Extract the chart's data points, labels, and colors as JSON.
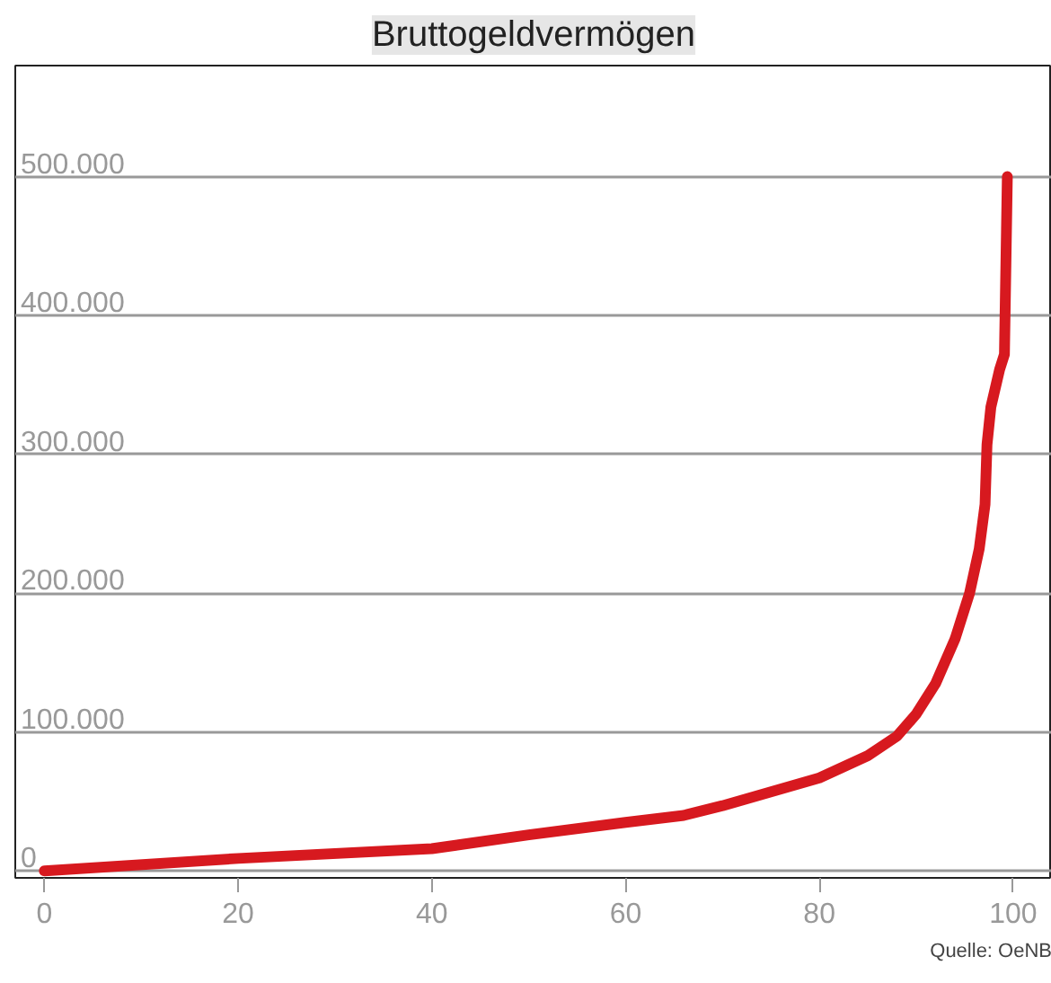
{
  "chart_data": {
    "type": "line",
    "title": "Bruttogeldvermögen",
    "annotations": [
      "Quelle: OeNB"
    ],
    "x": [
      0,
      20,
      40,
      50,
      60,
      66,
      70,
      75,
      80,
      85,
      88,
      90,
      92,
      94,
      95.5,
      96.5,
      97.1,
      97.3,
      97.7,
      98.6,
      99.1,
      99.4
    ],
    "series": [
      {
        "color": "#d7191f",
        "values": [
          0,
          9000,
          16000,
          26000,
          35000,
          40000,
          47000,
          57000,
          67000,
          83000,
          97000,
          113000,
          135000,
          167000,
          200000,
          232000,
          264000,
          307000,
          334000,
          361000,
          372000,
          500000
        ]
      }
    ],
    "xlim": [
      -3,
      104
    ],
    "ylim": [
      -5000,
      580000
    ],
    "xticks": [
      0,
      20,
      40,
      60,
      80,
      100
    ],
    "yticks": [
      {
        "value": 0,
        "label": "0"
      },
      {
        "value": 100000,
        "label": "100.000"
      },
      {
        "value": 200000,
        "label": "200.000"
      },
      {
        "value": 300000,
        "label": "300.000"
      },
      {
        "value": 400000,
        "label": "400.000"
      },
      {
        "value": 500000,
        "label": "500.000"
      }
    ],
    "grid": "y",
    "marker": "none",
    "line_style": "solid"
  }
}
